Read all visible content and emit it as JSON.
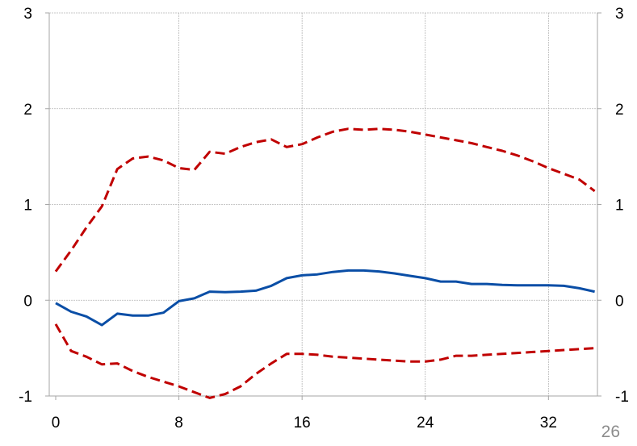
{
  "chart_data": {
    "type": "line",
    "title": "",
    "xlabel": "",
    "ylabel": "",
    "xlim": [
      0,
      35
    ],
    "ylim": [
      -1,
      3
    ],
    "x_ticks": [
      0,
      8,
      16,
      24,
      32
    ],
    "y_ticks": [
      -1,
      0,
      1,
      2,
      3
    ],
    "grid": true,
    "legend": "none",
    "x": [
      0,
      1,
      2,
      3,
      4,
      5,
      6,
      7,
      8,
      9,
      10,
      11,
      12,
      13,
      14,
      15,
      16,
      17,
      18,
      19,
      20,
      21,
      22,
      23,
      24,
      25,
      26,
      27,
      28,
      29,
      30,
      31,
      32,
      33,
      34,
      35
    ],
    "series": [
      {
        "role": "central",
        "style": "solid",
        "color": "#0a4ea6",
        "values": [
          -0.03,
          -0.12,
          -0.17,
          -0.26,
          -0.14,
          -0.16,
          -0.16,
          -0.13,
          -0.01,
          0.02,
          0.09,
          0.085,
          0.09,
          0.1,
          0.15,
          0.23,
          0.26,
          0.27,
          0.295,
          0.31,
          0.31,
          0.3,
          0.28,
          0.255,
          0.23,
          0.195,
          0.195,
          0.17,
          0.17,
          0.16,
          0.155,
          0.155,
          0.155,
          0.15,
          0.125,
          0.09
        ]
      },
      {
        "role": "upper",
        "style": "dashed",
        "color": "#c00000",
        "values": [
          0.3,
          0.52,
          0.76,
          0.98,
          1.37,
          1.48,
          1.5,
          1.46,
          1.38,
          1.36,
          1.55,
          1.53,
          1.6,
          1.65,
          1.68,
          1.6,
          1.63,
          1.7,
          1.76,
          1.79,
          1.78,
          1.79,
          1.78,
          1.76,
          1.73,
          1.7,
          1.67,
          1.64,
          1.6,
          1.56,
          1.51,
          1.45,
          1.38,
          1.32,
          1.26,
          1.14
        ]
      },
      {
        "role": "lower",
        "style": "dashed",
        "color": "#c00000",
        "values": [
          -0.25,
          -0.53,
          -0.59,
          -0.67,
          -0.66,
          -0.74,
          -0.8,
          -0.85,
          -0.9,
          -0.96,
          -1.02,
          -0.98,
          -0.9,
          -0.77,
          -0.66,
          -0.56,
          -0.56,
          -0.57,
          -0.59,
          -0.6,
          -0.61,
          -0.62,
          -0.63,
          -0.64,
          -0.64,
          -0.62,
          -0.58,
          -0.58,
          -0.57,
          -0.56,
          -0.55,
          -0.54,
          -0.53,
          -0.52,
          -0.51,
          -0.5
        ]
      }
    ]
  },
  "page_number": "26"
}
